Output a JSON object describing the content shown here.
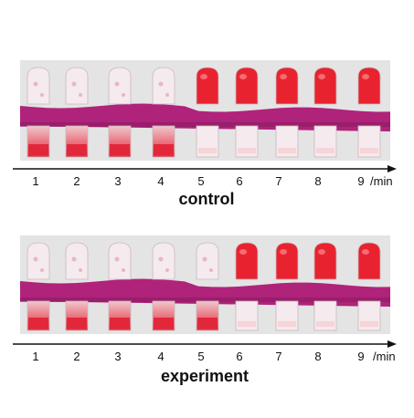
{
  "panels": [
    {
      "id": "control",
      "caption": "control",
      "tick_labels": [
        "1",
        "2",
        "3",
        "4",
        "5",
        "6",
        "7",
        "8",
        "9"
      ],
      "unit": "/min",
      "tubes": [
        {
          "label": "1",
          "state": "liquid"
        },
        {
          "label": "2",
          "state": "liquid"
        },
        {
          "label": "3",
          "state": "liquid"
        },
        {
          "label": "4",
          "state": "liquid"
        },
        {
          "label": "5",
          "state": "gel"
        },
        {
          "label": "6",
          "state": "gel"
        },
        {
          "label": "7",
          "state": "gel"
        },
        {
          "label": "8",
          "state": "gel"
        },
        {
          "label": "9",
          "state": "gel"
        }
      ]
    },
    {
      "id": "experiment",
      "caption": "experiment",
      "tick_labels": [
        "1",
        "2",
        "3",
        "4",
        "5",
        "6",
        "7",
        "8",
        "9"
      ],
      "unit": "/min",
      "tubes": [
        {
          "label": "1",
          "state": "liquid"
        },
        {
          "label": "2",
          "state": "liquid"
        },
        {
          "label": "3",
          "state": "liquid"
        },
        {
          "label": "4",
          "state": "liquid"
        },
        {
          "label": "5",
          "state": "liquid"
        },
        {
          "label": "6",
          "state": "gel"
        },
        {
          "label": "7",
          "state": "gel"
        },
        {
          "label": "8",
          "state": "gel"
        },
        {
          "label": "9",
          "state": "gel"
        }
      ]
    }
  ],
  "colors": {
    "rack": "#b0237a",
    "rack_dark": "#8a1a60",
    "gel": "#e8232f",
    "liquid_top": "#f0c8cc",
    "liquid_bottom": "#e3273a",
    "glass": "#f5eaed",
    "photo_bg": "#e4e4e4"
  }
}
